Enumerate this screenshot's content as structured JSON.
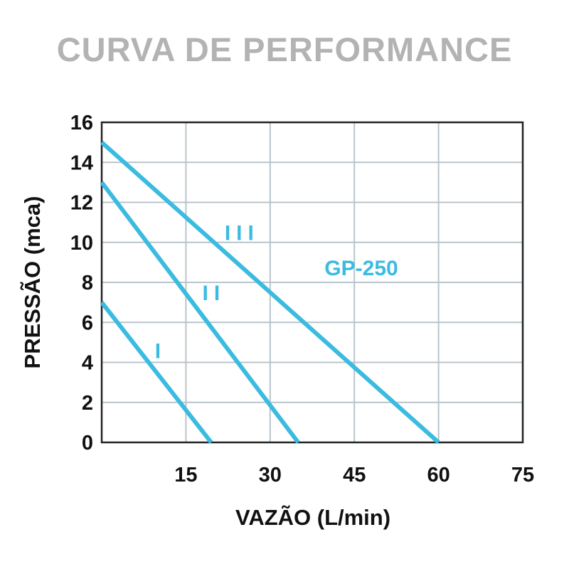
{
  "chart_data": {
    "type": "line",
    "title": "CURVA DE PERFORMANCE",
    "xlabel": "VAZÃO (L/min)",
    "ylabel": "PRESSÃO (mca)",
    "xlim": [
      0,
      75
    ],
    "ylim": [
      0,
      16
    ],
    "x_ticks": [
      15,
      30,
      45,
      60,
      75
    ],
    "y_ticks": [
      0,
      2,
      4,
      6,
      8,
      10,
      12,
      14,
      16
    ],
    "grid": true,
    "model_label": "GP-250",
    "line_color": "#3bbbe0",
    "series": [
      {
        "name": "I",
        "points": [
          [
            0,
            7
          ],
          [
            19.5,
            0
          ]
        ],
        "label_pos": [
          10.5,
          4.6
        ]
      },
      {
        "name": "II",
        "points": [
          [
            0,
            13
          ],
          [
            35,
            0
          ]
        ],
        "label_pos": [
          20,
          7.5
        ]
      },
      {
        "name": "III",
        "points": [
          [
            0,
            15
          ],
          [
            60,
            0
          ]
        ],
        "label_pos": [
          25,
          10.5
        ]
      }
    ]
  }
}
